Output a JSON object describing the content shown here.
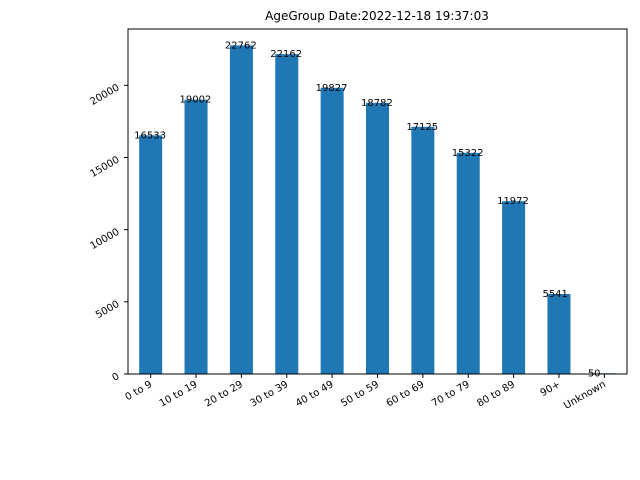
{
  "chart_data": {
    "type": "bar",
    "title": "AgeGroup  Date:2022-12-18 19:37:03",
    "xlabel": "",
    "ylabel": "",
    "categories": [
      "0 to 9",
      "10 to 19",
      "20 to 29",
      "30 to 39",
      "40 to 49",
      "50 to 59",
      "60 to 69",
      "70 to 79",
      "80 to 89",
      "90+",
      "Unknown"
    ],
    "values": [
      16533,
      19002,
      22762,
      22162,
      19827,
      18782,
      17125,
      15322,
      11972,
      5541,
      50
    ],
    "ylim": [
      0,
      23900
    ],
    "yticks": [
      0,
      5000,
      10000,
      15000,
      20000
    ],
    "grid": false,
    "legend": "none",
    "bar_color": "#1f77b4"
  }
}
